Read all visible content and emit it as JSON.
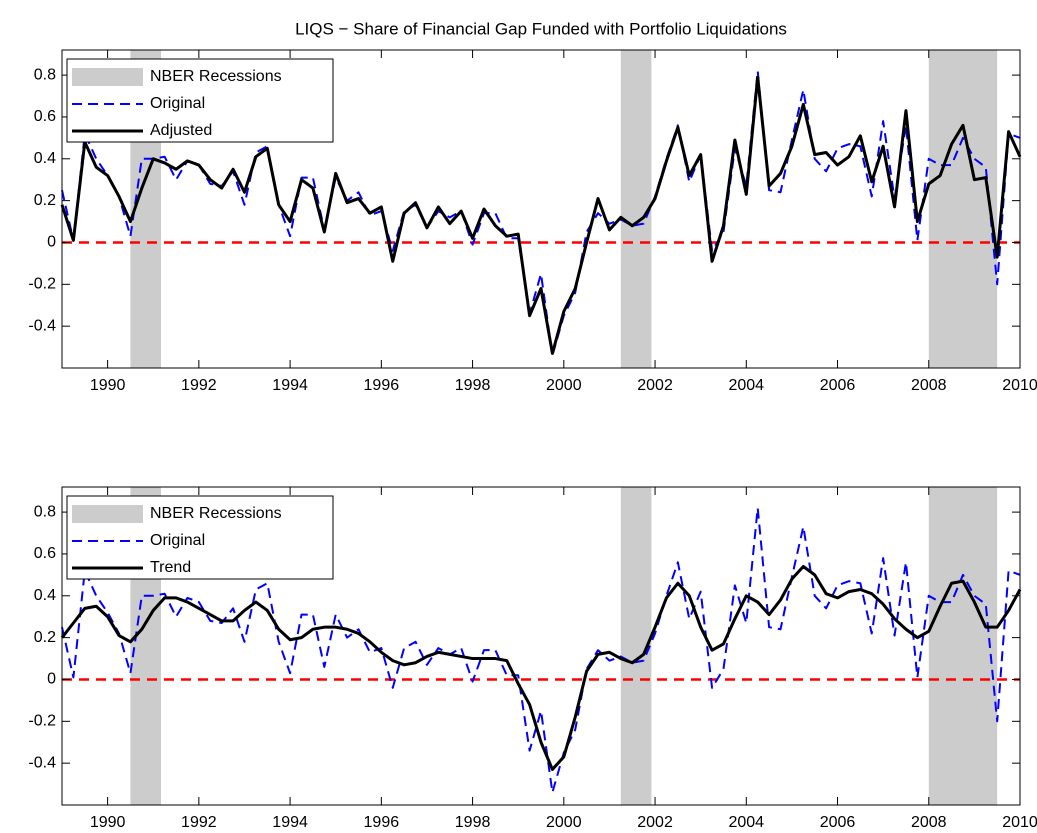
{
  "chart_data": [
    {
      "type": "line",
      "title": "LIQS − Share of Financial Gap Funded with Portfolio Liquidations",
      "x": [
        1989,
        1989.25,
        1989.5,
        1989.75,
        1990,
        1990.25,
        1990.5,
        1990.75,
        1991,
        1991.25,
        1991.5,
        1991.75,
        1992,
        1992.25,
        1992.5,
        1992.75,
        1993,
        1993.25,
        1993.5,
        1993.75,
        1994,
        1994.25,
        1994.5,
        1994.75,
        1995,
        1995.25,
        1995.5,
        1995.75,
        1996,
        1996.25,
        1996.5,
        1996.75,
        1997,
        1997.25,
        1997.5,
        1997.75,
        1998,
        1998.25,
        1998.5,
        1998.75,
        1999,
        1999.25,
        1999.5,
        1999.75,
        2000,
        2000.25,
        2000.5,
        2000.75,
        2001,
        2001.25,
        2001.5,
        2001.75,
        2002,
        2002.25,
        2002.5,
        2002.75,
        2003,
        2003.25,
        2003.5,
        2003.75,
        2004,
        2004.25,
        2004.5,
        2004.75,
        2005,
        2005.25,
        2005.5,
        2005.75,
        2006,
        2006.25,
        2006.5,
        2006.75,
        2007,
        2007.25,
        2007.5,
        2007.75,
        2008,
        2008.25,
        2008.5,
        2008.75,
        2009,
        2009.25,
        2009.5,
        2009.75,
        2010
      ],
      "series": [
        {
          "name": "Original",
          "color": "#0000ff",
          "dash": "dashed",
          "values": [
            0.25,
            0.01,
            0.52,
            0.4,
            0.32,
            0.22,
            0.03,
            0.4,
            0.4,
            0.41,
            0.3,
            0.39,
            0.37,
            0.28,
            0.27,
            0.34,
            0.18,
            0.43,
            0.46,
            0.18,
            0.03,
            0.31,
            0.31,
            0.06,
            0.31,
            0.2,
            0.24,
            0.13,
            0.15,
            -0.04,
            0.15,
            0.18,
            0.07,
            0.15,
            0.12,
            0.15,
            -0.01,
            0.14,
            0.14,
            0.02,
            0.02,
            -0.34,
            -0.15,
            -0.54,
            -0.35,
            -0.24,
            0.05,
            0.14,
            0.09,
            0.11,
            0.08,
            0.09,
            0.22,
            0.4,
            0.56,
            0.29,
            0.42,
            -0.04,
            0.05,
            0.45,
            0.27,
            0.82,
            0.25,
            0.24,
            0.49,
            0.73,
            0.4,
            0.34,
            0.45,
            0.47,
            0.46,
            0.22,
            0.58,
            0.21,
            0.56,
            0.01,
            0.4,
            0.37,
            0.37,
            0.5,
            0.4,
            0.36,
            -0.2,
            0.52,
            0.5
          ]
        },
        {
          "name": "Adjusted",
          "color": "#000000",
          "dash": "solid",
          "values": [
            0.18,
            0.01,
            0.48,
            0.36,
            0.32,
            0.22,
            0.1,
            0.26,
            0.4,
            0.38,
            0.35,
            0.39,
            0.37,
            0.3,
            0.26,
            0.35,
            0.24,
            0.41,
            0.45,
            0.18,
            0.1,
            0.3,
            0.26,
            0.05,
            0.33,
            0.19,
            0.21,
            0.14,
            0.17,
            -0.09,
            0.14,
            0.19,
            0.07,
            0.17,
            0.09,
            0.15,
            0.02,
            0.16,
            0.08,
            0.03,
            0.04,
            -0.35,
            -0.22,
            -0.53,
            -0.33,
            -0.22,
            0.0,
            0.21,
            0.06,
            0.12,
            0.08,
            0.12,
            0.21,
            0.39,
            0.55,
            0.32,
            0.42,
            -0.09,
            0.08,
            0.49,
            0.23,
            0.79,
            0.27,
            0.33,
            0.46,
            0.66,
            0.42,
            0.43,
            0.37,
            0.41,
            0.51,
            0.29,
            0.46,
            0.17,
            0.63,
            0.1,
            0.28,
            0.32,
            0.47,
            0.56,
            0.3,
            0.31,
            -0.07,
            0.53,
            0.41
          ]
        }
      ],
      "recessions": {
        "name": "NBER Recessions",
        "color": "#cccccc",
        "spans": [
          [
            1990.5,
            1991.17
          ],
          [
            2001.25,
            2001.92
          ],
          [
            2008.0,
            2009.5
          ]
        ]
      },
      "reference_line": {
        "value": 0,
        "color": "#ff0000"
      },
      "xlim": [
        1989,
        2010
      ],
      "xticks": [
        1990,
        1992,
        1994,
        1996,
        1998,
        2000,
        2002,
        2004,
        2006,
        2008,
        2010
      ],
      "ylim": [
        -0.6,
        0.92
      ],
      "yticks": [
        -0.4,
        -0.2,
        0,
        0.2,
        0.4,
        0.6,
        0.8
      ],
      "legend": "upper left"
    },
    {
      "type": "line",
      "x": [
        1989,
        1989.25,
        1989.5,
        1989.75,
        1990,
        1990.25,
        1990.5,
        1990.75,
        1991,
        1991.25,
        1991.5,
        1991.75,
        1992,
        1992.25,
        1992.5,
        1992.75,
        1993,
        1993.25,
        1993.5,
        1993.75,
        1994,
        1994.25,
        1994.5,
        1994.75,
        1995,
        1995.25,
        1995.5,
        1995.75,
        1996,
        1996.25,
        1996.5,
        1996.75,
        1997,
        1997.25,
        1997.5,
        1997.75,
        1998,
        1998.25,
        1998.5,
        1998.75,
        1999,
        1999.25,
        1999.5,
        1999.75,
        2000,
        2000.25,
        2000.5,
        2000.75,
        2001,
        2001.25,
        2001.5,
        2001.75,
        2002,
        2002.25,
        2002.5,
        2002.75,
        2003,
        2003.25,
        2003.5,
        2003.75,
        2004,
        2004.25,
        2004.5,
        2004.75,
        2005,
        2005.25,
        2005.5,
        2005.75,
        2006,
        2006.25,
        2006.5,
        2006.75,
        2007,
        2007.25,
        2007.5,
        2007.75,
        2008,
        2008.25,
        2008.5,
        2008.75,
        2009,
        2009.25,
        2009.5,
        2009.75,
        2010
      ],
      "series": [
        {
          "name": "Original",
          "color": "#0000ff",
          "dash": "dashed",
          "values": [
            0.25,
            0.01,
            0.52,
            0.4,
            0.32,
            0.22,
            0.03,
            0.4,
            0.4,
            0.41,
            0.3,
            0.39,
            0.37,
            0.28,
            0.27,
            0.34,
            0.18,
            0.43,
            0.46,
            0.18,
            0.03,
            0.31,
            0.31,
            0.06,
            0.31,
            0.2,
            0.24,
            0.13,
            0.15,
            -0.04,
            0.15,
            0.18,
            0.07,
            0.15,
            0.12,
            0.15,
            -0.01,
            0.14,
            0.14,
            0.02,
            0.02,
            -0.34,
            -0.15,
            -0.54,
            -0.35,
            -0.24,
            0.05,
            0.14,
            0.09,
            0.11,
            0.08,
            0.09,
            0.22,
            0.4,
            0.56,
            0.29,
            0.42,
            -0.04,
            0.05,
            0.45,
            0.27,
            0.82,
            0.25,
            0.24,
            0.49,
            0.73,
            0.4,
            0.34,
            0.45,
            0.47,
            0.46,
            0.22,
            0.58,
            0.21,
            0.56,
            0.01,
            0.4,
            0.37,
            0.37,
            0.5,
            0.4,
            0.36,
            -0.2,
            0.52,
            0.5
          ]
        },
        {
          "name": "Trend",
          "color": "#000000",
          "dash": "solid",
          "values": [
            0.2,
            0.27,
            0.34,
            0.35,
            0.3,
            0.21,
            0.18,
            0.24,
            0.33,
            0.39,
            0.39,
            0.37,
            0.34,
            0.31,
            0.28,
            0.28,
            0.33,
            0.37,
            0.33,
            0.24,
            0.19,
            0.2,
            0.24,
            0.25,
            0.25,
            0.24,
            0.22,
            0.18,
            0.13,
            0.09,
            0.07,
            0.08,
            0.11,
            0.13,
            0.12,
            0.11,
            0.1,
            0.1,
            0.1,
            0.09,
            -0.02,
            -0.12,
            -0.3,
            -0.43,
            -0.37,
            -0.18,
            0.04,
            0.12,
            0.13,
            0.1,
            0.08,
            0.12,
            0.25,
            0.39,
            0.46,
            0.4,
            0.25,
            0.14,
            0.17,
            0.29,
            0.4,
            0.37,
            0.31,
            0.38,
            0.48,
            0.54,
            0.5,
            0.41,
            0.39,
            0.42,
            0.43,
            0.41,
            0.36,
            0.29,
            0.24,
            0.2,
            0.23,
            0.35,
            0.46,
            0.47,
            0.37,
            0.25,
            0.25,
            0.33,
            0.43
          ]
        }
      ],
      "recessions": {
        "name": "NBER Recessions",
        "color": "#cccccc",
        "spans": [
          [
            1990.5,
            1991.17
          ],
          [
            2001.25,
            2001.92
          ],
          [
            2008.0,
            2009.5
          ]
        ]
      },
      "reference_line": {
        "value": 0,
        "color": "#ff0000"
      },
      "xlim": [
        1989,
        2010
      ],
      "xticks": [
        1990,
        1992,
        1994,
        1996,
        1998,
        2000,
        2002,
        2004,
        2006,
        2008,
        2010
      ],
      "ylim": [
        -0.6,
        0.92
      ],
      "yticks": [
        -0.4,
        -0.2,
        0,
        0.2,
        0.4,
        0.6,
        0.8
      ],
      "legend": "upper left"
    }
  ]
}
